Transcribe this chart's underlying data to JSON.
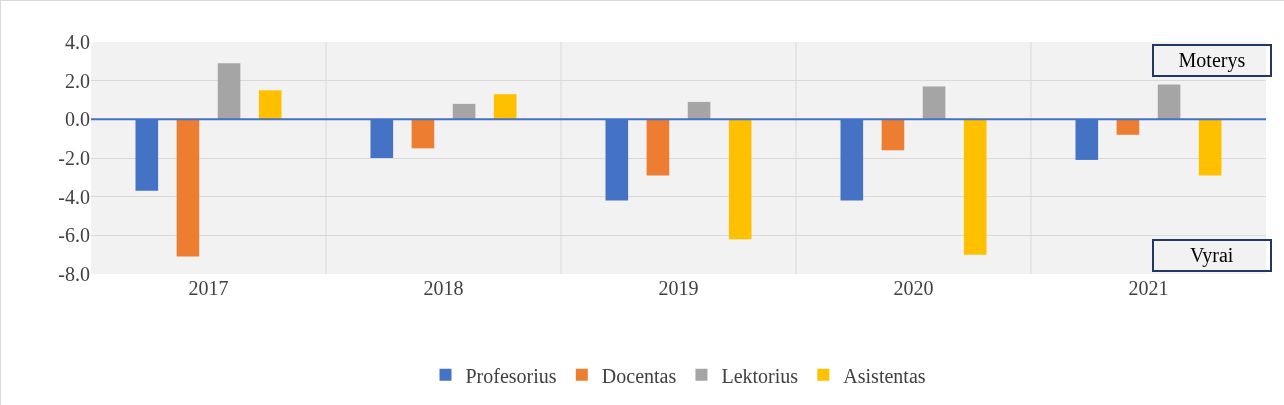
{
  "chart_data": {
    "type": "bar",
    "categories": [
      "2017",
      "2018",
      "2019",
      "2020",
      "2021"
    ],
    "series": [
      {
        "name": "Profesorius",
        "color": "#4472c4",
        "values": [
          -3.7,
          -2.0,
          -4.2,
          -4.2,
          -2.1
        ]
      },
      {
        "name": "Docentas",
        "color": "#ed7d31",
        "values": [
          -7.1,
          -1.5,
          -2.9,
          -1.6,
          -0.8
        ]
      },
      {
        "name": "Lektorius",
        "color": "#a5a5a5",
        "values": [
          2.9,
          0.8,
          0.9,
          1.7,
          1.8
        ]
      },
      {
        "name": "Asistentas",
        "color": "#ffc000",
        "values": [
          1.5,
          1.3,
          -6.2,
          -7.0,
          -2.9
        ]
      }
    ],
    "ylim": [
      -8,
      4
    ],
    "yticks": [
      {
        "value": -8,
        "label": "-8.0"
      },
      {
        "value": -6,
        "label": "-6.0"
      },
      {
        "value": -4,
        "label": "-4.0"
      },
      {
        "value": -2,
        "label": "-2.0"
      },
      {
        "value": 0,
        "label": "0.0"
      },
      {
        "value": 2,
        "label": "2.0"
      },
      {
        "value": 4,
        "label": "4.0"
      }
    ],
    "grid": true,
    "legend": "bottom",
    "ref_lines": [
      {
        "axis": "y",
        "value": 0,
        "color": "#4472c4",
        "line_style": "solid"
      }
    ],
    "annotations": [
      "Moterys",
      "Vyrai"
    ]
  }
}
